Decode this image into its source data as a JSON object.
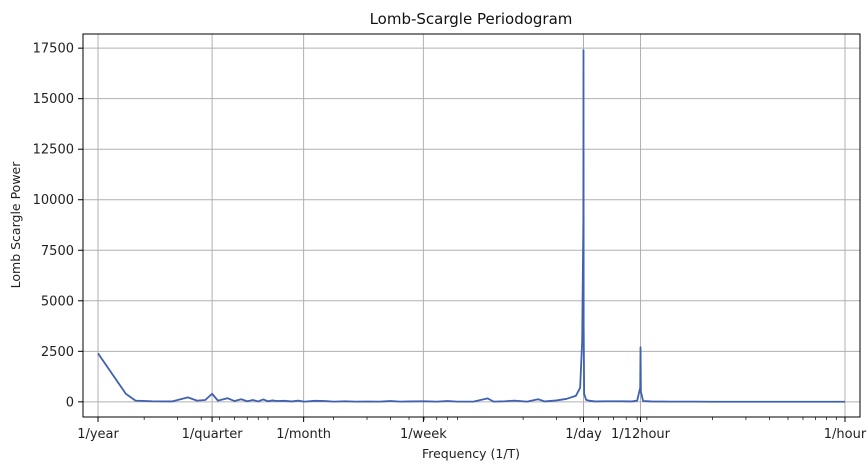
{
  "chart_data": {
    "type": "line",
    "title": "Lomb-Scargle Periodogram",
    "xlabel": "Frequency (1/T)",
    "ylabel": "Lomb Scargle Power",
    "x_scale": "log",
    "x_units": "cycles per hour",
    "xlim": [
      9.51e-05,
      1.2
    ],
    "ylim": [
      -750,
      18200
    ],
    "grid": true,
    "line_color": "#4060b0",
    "x_ticks": [
      {
        "label": "1/year",
        "value": 0.000114155
      },
      {
        "label": "1/quarter",
        "value": 0.000456621
      },
      {
        "label": "1/month",
        "value": 0.001388889
      },
      {
        "label": "1/week",
        "value": 0.005952381
      },
      {
        "label": "1/day",
        "value": 0.041666667
      },
      {
        "label": "1/12hour",
        "value": 0.083333333
      },
      {
        "label": "1/hour",
        "value": 1.0
      }
    ],
    "y_ticks": [
      0,
      2500,
      5000,
      7500,
      10000,
      12500,
      15000,
      17500
    ],
    "series": [
      {
        "x": [
          0.000114155,
          0.00016,
          0.00018,
          0.00022,
          0.00028,
          0.00034,
          0.00038,
          0.00042,
          0.000456621,
          0.00049,
          0.00055,
          0.0006,
          0.00065,
          0.0007,
          0.00075,
          0.0008,
          0.00085,
          0.0009,
          0.00095,
          0.001,
          0.0011,
          0.0012,
          0.0013,
          0.0014,
          0.0016,
          0.0018,
          0.002,
          0.0023,
          0.0026,
          0.003,
          0.0035,
          0.004,
          0.0045,
          0.005,
          0.006,
          0.007,
          0.008,
          0.009,
          0.011,
          0.013,
          0.014,
          0.016,
          0.018,
          0.021,
          0.024,
          0.026,
          0.03,
          0.034,
          0.038,
          0.04,
          0.041,
          0.0416,
          0.041666667,
          0.04175,
          0.042,
          0.043,
          0.045,
          0.048,
          0.055,
          0.065,
          0.075,
          0.08,
          0.083,
          0.083333333,
          0.0837,
          0.086,
          0.095,
          0.12,
          0.16,
          0.2,
          0.3,
          0.4,
          0.6,
          0.8,
          1.0
        ],
        "y": [
          2400,
          400,
          60,
          30,
          20,
          220,
          60,
          90,
          400,
          60,
          180,
          40,
          130,
          30,
          90,
          20,
          120,
          30,
          70,
          40,
          50,
          20,
          60,
          10,
          50,
          40,
          10,
          30,
          10,
          15,
          10,
          40,
          10,
          20,
          30,
          10,
          40,
          10,
          15,
          170,
          10,
          30,
          60,
          10,
          130,
          20,
          70,
          150,
          300,
          700,
          3000,
          9000,
          17400,
          3800,
          400,
          100,
          50,
          20,
          30,
          30,
          20,
          60,
          700,
          2700,
          500,
          40,
          20,
          10,
          10,
          5,
          5,
          5,
          5,
          5,
          5
        ]
      }
    ]
  }
}
